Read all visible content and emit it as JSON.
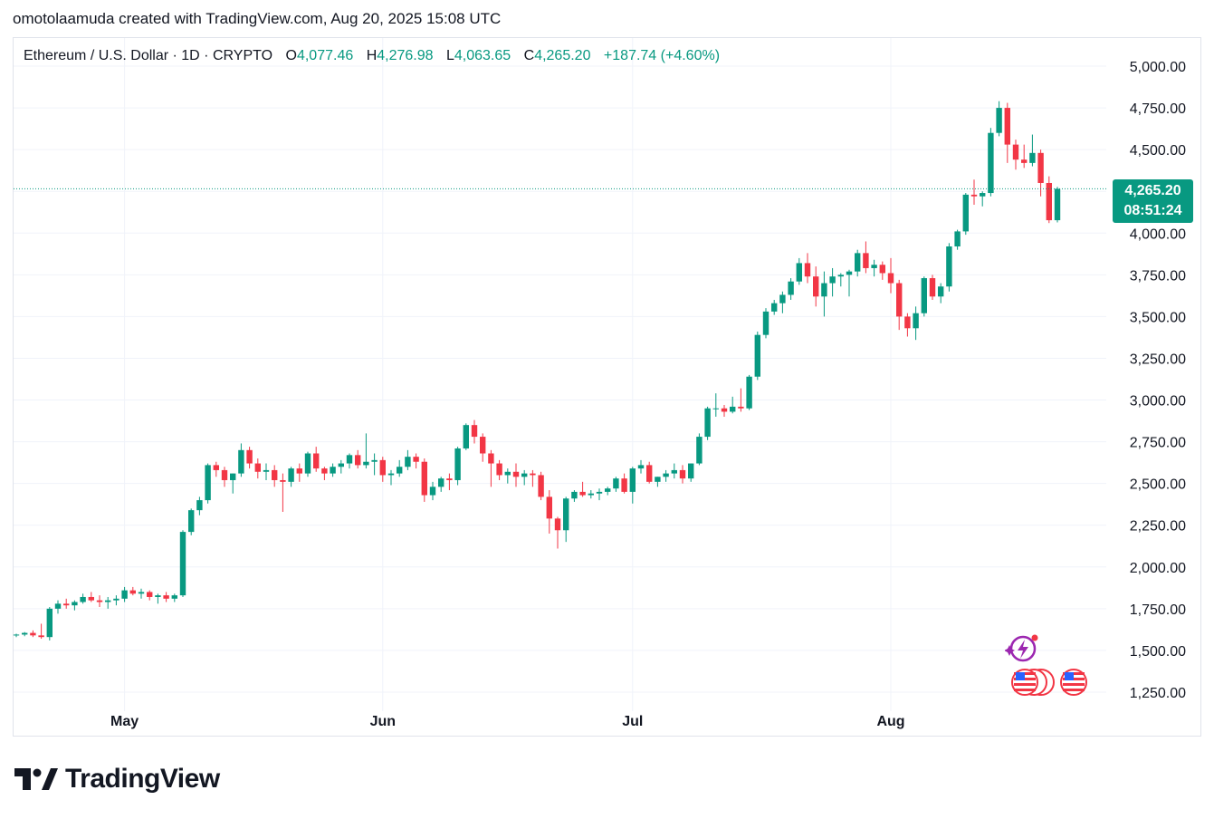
{
  "header": {
    "text": "omotolaamuda created with TradingView.com, Aug 20, 2025 15:08 UTC"
  },
  "legend": {
    "symbol": "Ethereum / U.S. Dollar · 1D · CRYPTO",
    "open_label": "O",
    "open": "4,077.46",
    "high_label": "H",
    "high": "4,276.98",
    "low_label": "L",
    "low": "4,063.65",
    "close_label": "C",
    "close": "4,265.20",
    "change": "+187.74 (+4.60%)"
  },
  "price_tag": {
    "price": "4,265.20",
    "countdown": "08:51:24"
  },
  "logo": {
    "text": "TradingView"
  },
  "icons": {
    "events": [
      "lightning-event-icon",
      "us-flag-icon"
    ]
  },
  "colors": {
    "up": "#089981",
    "down": "#f23645",
    "grid": "#f0f3fa",
    "accent": "#089981",
    "event_purple": "#9c27b0"
  },
  "chart_data": {
    "type": "candlestick",
    "title": "Ethereum / U.S. Dollar · 1D · CRYPTO",
    "y_ticks": [
      1250,
      1500,
      1750,
      2000,
      2250,
      2500,
      2750,
      3000,
      3250,
      3500,
      3750,
      4000,
      4250,
      4500,
      4750,
      5000
    ],
    "y_tick_labels": [
      "1,250.00",
      "1,500.00",
      "1,750.00",
      "2,000.00",
      "2,250.00",
      "2,500.00",
      "2,750.00",
      "3,000.00",
      "3,250.00",
      "3,500.00",
      "3,750.00",
      "4,000.00",
      "4,250.00",
      "4,500.00",
      "4,750.00",
      "5,000.00"
    ],
    "x_labels": [
      {
        "label": "May",
        "index": 13
      },
      {
        "label": "Jun",
        "index": 44
      },
      {
        "label": "Jul",
        "index": 74
      },
      {
        "label": "Aug",
        "index": 105
      }
    ],
    "last_price": 4265.2,
    "ylim": [
      1180,
      5120
    ],
    "candles": [
      [
        1590,
        1600,
        1580,
        1595
      ],
      [
        1595,
        1610,
        1585,
        1605
      ],
      [
        1605,
        1620,
        1580,
        1590
      ],
      [
        1590,
        1660,
        1570,
        1580
      ],
      [
        1580,
        1760,
        1560,
        1750
      ],
      [
        1750,
        1800,
        1720,
        1780
      ],
      [
        1780,
        1810,
        1750,
        1770
      ],
      [
        1770,
        1800,
        1740,
        1790
      ],
      [
        1790,
        1840,
        1780,
        1820
      ],
      [
        1820,
        1850,
        1790,
        1800
      ],
      [
        1800,
        1830,
        1760,
        1790
      ],
      [
        1790,
        1820,
        1750,
        1800
      ],
      [
        1800,
        1830,
        1770,
        1810
      ],
      [
        1810,
        1880,
        1790,
        1860
      ],
      [
        1860,
        1880,
        1830,
        1840
      ],
      [
        1840,
        1870,
        1810,
        1850
      ],
      [
        1850,
        1860,
        1800,
        1820
      ],
      [
        1820,
        1840,
        1780,
        1830
      ],
      [
        1830,
        1850,
        1790,
        1810
      ],
      [
        1810,
        1840,
        1790,
        1830
      ],
      [
        1830,
        2220,
        1820,
        2210
      ],
      [
        2210,
        2350,
        2190,
        2340
      ],
      [
        2340,
        2420,
        2310,
        2400
      ],
      [
        2400,
        2620,
        2380,
        2610
      ],
      [
        2610,
        2630,
        2540,
        2580
      ],
      [
        2580,
        2600,
        2480,
        2520
      ],
      [
        2520,
        2560,
        2440,
        2560
      ],
      [
        2560,
        2740,
        2540,
        2700
      ],
      [
        2700,
        2720,
        2590,
        2620
      ],
      [
        2620,
        2650,
        2530,
        2570
      ],
      [
        2570,
        2620,
        2520,
        2580
      ],
      [
        2580,
        2610,
        2480,
        2520
      ],
      [
        2520,
        2560,
        2330,
        2510
      ],
      [
        2510,
        2600,
        2480,
        2590
      ],
      [
        2590,
        2620,
        2510,
        2560
      ],
      [
        2560,
        2690,
        2540,
        2680
      ],
      [
        2680,
        2720,
        2570,
        2590
      ],
      [
        2590,
        2600,
        2520,
        2560
      ],
      [
        2560,
        2620,
        2540,
        2600
      ],
      [
        2600,
        2640,
        2560,
        2620
      ],
      [
        2620,
        2680,
        2590,
        2670
      ],
      [
        2670,
        2700,
        2590,
        2610
      ],
      [
        2610,
        2800,
        2590,
        2630
      ],
      [
        2630,
        2680,
        2550,
        2640
      ],
      [
        2640,
        2660,
        2510,
        2550
      ],
      [
        2550,
        2580,
        2490,
        2560
      ],
      [
        2560,
        2640,
        2540,
        2600
      ],
      [
        2600,
        2700,
        2580,
        2660
      ],
      [
        2660,
        2680,
        2590,
        2630
      ],
      [
        2630,
        2650,
        2390,
        2430
      ],
      [
        2430,
        2510,
        2400,
        2480
      ],
      [
        2480,
        2540,
        2450,
        2530
      ],
      [
        2530,
        2560,
        2460,
        2520
      ],
      [
        2520,
        2720,
        2490,
        2710
      ],
      [
        2710,
        2860,
        2700,
        2850
      ],
      [
        2850,
        2880,
        2740,
        2780
      ],
      [
        2780,
        2800,
        2630,
        2680
      ],
      [
        2680,
        2700,
        2480,
        2620
      ],
      [
        2620,
        2640,
        2520,
        2550
      ],
      [
        2550,
        2590,
        2500,
        2570
      ],
      [
        2570,
        2620,
        2480,
        2540
      ],
      [
        2540,
        2580,
        2490,
        2560
      ],
      [
        2560,
        2580,
        2480,
        2550
      ],
      [
        2550,
        2570,
        2400,
        2420
      ],
      [
        2420,
        2460,
        2200,
        2290
      ],
      [
        2290,
        2300,
        2110,
        2220
      ],
      [
        2220,
        2420,
        2150,
        2410
      ],
      [
        2410,
        2460,
        2390,
        2450
      ],
      [
        2450,
        2510,
        2420,
        2430
      ],
      [
        2430,
        2460,
        2410,
        2440
      ],
      [
        2440,
        2470,
        2400,
        2450
      ],
      [
        2450,
        2480,
        2430,
        2470
      ],
      [
        2470,
        2540,
        2450,
        2530
      ],
      [
        2530,
        2560,
        2440,
        2450
      ],
      [
        2450,
        2600,
        2380,
        2590
      ],
      [
        2590,
        2640,
        2560,
        2610
      ],
      [
        2610,
        2630,
        2500,
        2510
      ],
      [
        2510,
        2540,
        2480,
        2540
      ],
      [
        2540,
        2580,
        2510,
        2560
      ],
      [
        2560,
        2620,
        2530,
        2580
      ],
      [
        2580,
        2610,
        2500,
        2530
      ],
      [
        2530,
        2620,
        2510,
        2620
      ],
      [
        2620,
        2800,
        2610,
        2780
      ],
      [
        2780,
        2960,
        2760,
        2950
      ],
      [
        2950,
        3040,
        2900,
        2950
      ],
      [
        2950,
        2970,
        2900,
        2930
      ],
      [
        2930,
        3020,
        2920,
        2960
      ],
      [
        2960,
        3070,
        2930,
        2950
      ],
      [
        2950,
        3150,
        2940,
        3140
      ],
      [
        3140,
        3410,
        3120,
        3390
      ],
      [
        3390,
        3550,
        3370,
        3530
      ],
      [
        3530,
        3600,
        3510,
        3580
      ],
      [
        3580,
        3650,
        3520,
        3630
      ],
      [
        3630,
        3730,
        3600,
        3710
      ],
      [
        3710,
        3850,
        3690,
        3820
      ],
      [
        3820,
        3880,
        3700,
        3740
      ],
      [
        3740,
        3800,
        3560,
        3620
      ],
      [
        3620,
        3770,
        3500,
        3700
      ],
      [
        3700,
        3790,
        3620,
        3740
      ],
      [
        3740,
        3760,
        3680,
        3750
      ],
      [
        3750,
        3780,
        3620,
        3770
      ],
      [
        3770,
        3900,
        3740,
        3880
      ],
      [
        3880,
        3950,
        3760,
        3790
      ],
      [
        3790,
        3840,
        3740,
        3810
      ],
      [
        3810,
        3830,
        3720,
        3760
      ],
      [
        3760,
        3850,
        3640,
        3700
      ],
      [
        3700,
        3720,
        3420,
        3500
      ],
      [
        3500,
        3520,
        3380,
        3430
      ],
      [
        3430,
        3560,
        3360,
        3520
      ],
      [
        3520,
        3740,
        3500,
        3730
      ],
      [
        3730,
        3750,
        3600,
        3620
      ],
      [
        3620,
        3700,
        3580,
        3680
      ],
      [
        3680,
        3940,
        3650,
        3920
      ],
      [
        3920,
        4020,
        3900,
        4010
      ],
      [
        4010,
        4240,
        3990,
        4230
      ],
      [
        4230,
        4320,
        4170,
        4220
      ],
      [
        4220,
        4250,
        4160,
        4240
      ],
      [
        4240,
        4630,
        4220,
        4600
      ],
      [
        4600,
        4790,
        4580,
        4750
      ],
      [
        4750,
        4780,
        4420,
        4530
      ],
      [
        4530,
        4560,
        4380,
        4440
      ],
      [
        4440,
        4530,
        4390,
        4420
      ],
      [
        4420,
        4590,
        4400,
        4480
      ],
      [
        4480,
        4500,
        4220,
        4300
      ],
      [
        4300,
        4340,
        4060,
        4077
      ],
      [
        4077,
        4277,
        4064,
        4265
      ]
    ]
  }
}
